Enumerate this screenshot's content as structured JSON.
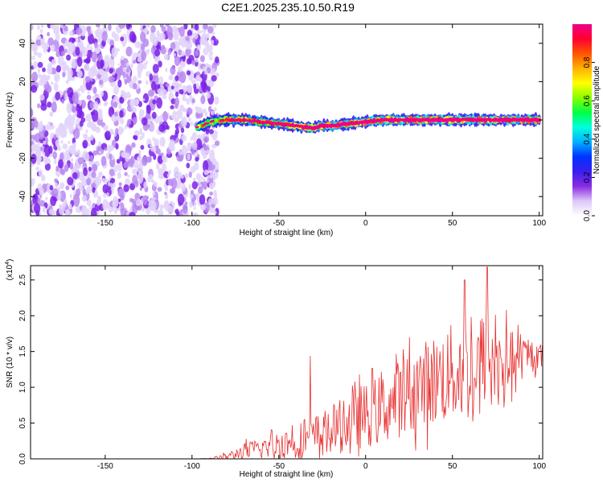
{
  "figure_title": "C2E1.2025.235.10.50.R19",
  "chart_data": [
    {
      "type": "heatmap",
      "title": "C2E1.2025.235.10.50.R19",
      "xlabel": "Height of straight line (km)",
      "ylabel": "Frequency (Hz)",
      "xlim": [
        -193,
        102
      ],
      "ylim": [
        -50,
        50
      ],
      "xticks": [
        -150,
        -100,
        -50,
        0,
        50,
        100
      ],
      "yticks": [
        -40,
        -20,
        0,
        20,
        40
      ],
      "colorbar": {
        "label": "Normalized spectral amplitude",
        "range": [
          0,
          1
        ],
        "ticks": [
          0.0,
          0.2,
          0.4,
          0.6,
          0.8
        ],
        "colors": [
          "#ffffff",
          "#dcc8f8",
          "#8a2be2",
          "#3a1ef0",
          "#0033ff",
          "#00b0ff",
          "#00ffdd",
          "#00ff44",
          "#88ff00",
          "#ffff00",
          "#ffb000",
          "#ff5500",
          "#ff0030",
          "#ee0088"
        ]
      },
      "noise_region": {
        "x": [
          -193,
          -90
        ],
        "y": [
          -50,
          50
        ],
        "amplitude": 0.25
      },
      "ridge_centerline": {
        "x": [
          -97,
          -90,
          -80,
          -70,
          -60,
          -50,
          -40,
          -35,
          -30,
          -25,
          -20,
          -10,
          0,
          10,
          20,
          30,
          40,
          50,
          60,
          70,
          80,
          90,
          100
        ],
        "frequency": [
          -4,
          -1,
          0,
          0,
          -1,
          -2,
          -3,
          -4,
          -4,
          -3,
          -3,
          -2,
          -1,
          0,
          0,
          0,
          0,
          0,
          0,
          0,
          0,
          0,
          0
        ],
        "peak_amplitude": [
          0.35,
          0.5,
          0.55,
          0.55,
          0.55,
          0.6,
          0.65,
          0.75,
          0.75,
          0.8,
          0.85,
          0.85,
          0.85,
          0.9,
          0.9,
          0.95,
          0.95,
          0.95,
          0.95,
          0.9,
          0.9,
          0.9,
          0.85
        ]
      }
    },
    {
      "type": "line",
      "xlabel": "Height of straight line (km)",
      "ylabel": "SNR (10 * v/v)",
      "y_scale_label": "(x10",
      "y_scale_exponent": "4",
      "xlim": [
        -193,
        102
      ],
      "ylim": [
        0,
        2.7
      ],
      "xticks": [
        -150,
        -100,
        -50,
        0,
        50,
        100
      ],
      "yticks": [
        "0.0",
        "0.5",
        "1.0",
        "1.5",
        "2.0",
        "2.5"
      ],
      "series": [
        {
          "name": "SNR",
          "color": "#e83030",
          "envelope_x": [
            -193,
            -100,
            -90,
            -80,
            -70,
            -60,
            -50,
            -40,
            -30,
            -20,
            -10,
            0,
            10,
            20,
            30,
            40,
            50,
            60,
            70,
            80,
            90,
            102
          ],
          "envelope_mean": [
            0.0,
            0.0,
            0.005,
            0.03,
            0.1,
            0.15,
            0.2,
            0.25,
            0.3,
            0.4,
            0.5,
            0.6,
            0.7,
            0.85,
            1.0,
            1.1,
            1.2,
            1.25,
            1.3,
            1.35,
            1.4,
            1.45
          ],
          "envelope_amplitude": [
            0.0,
            0.0,
            0.005,
            0.05,
            0.12,
            0.15,
            0.2,
            0.25,
            0.3,
            0.35,
            0.4,
            0.45,
            0.5,
            0.55,
            0.6,
            0.65,
            0.7,
            0.75,
            0.8,
            0.55,
            0.3,
            0.15
          ],
          "spikes": [
            {
              "x": -32,
              "y": 1.44
            },
            {
              "x": 57,
              "y": 2.5
            },
            {
              "x": 70,
              "y": 2.68
            }
          ]
        }
      ]
    }
  ]
}
